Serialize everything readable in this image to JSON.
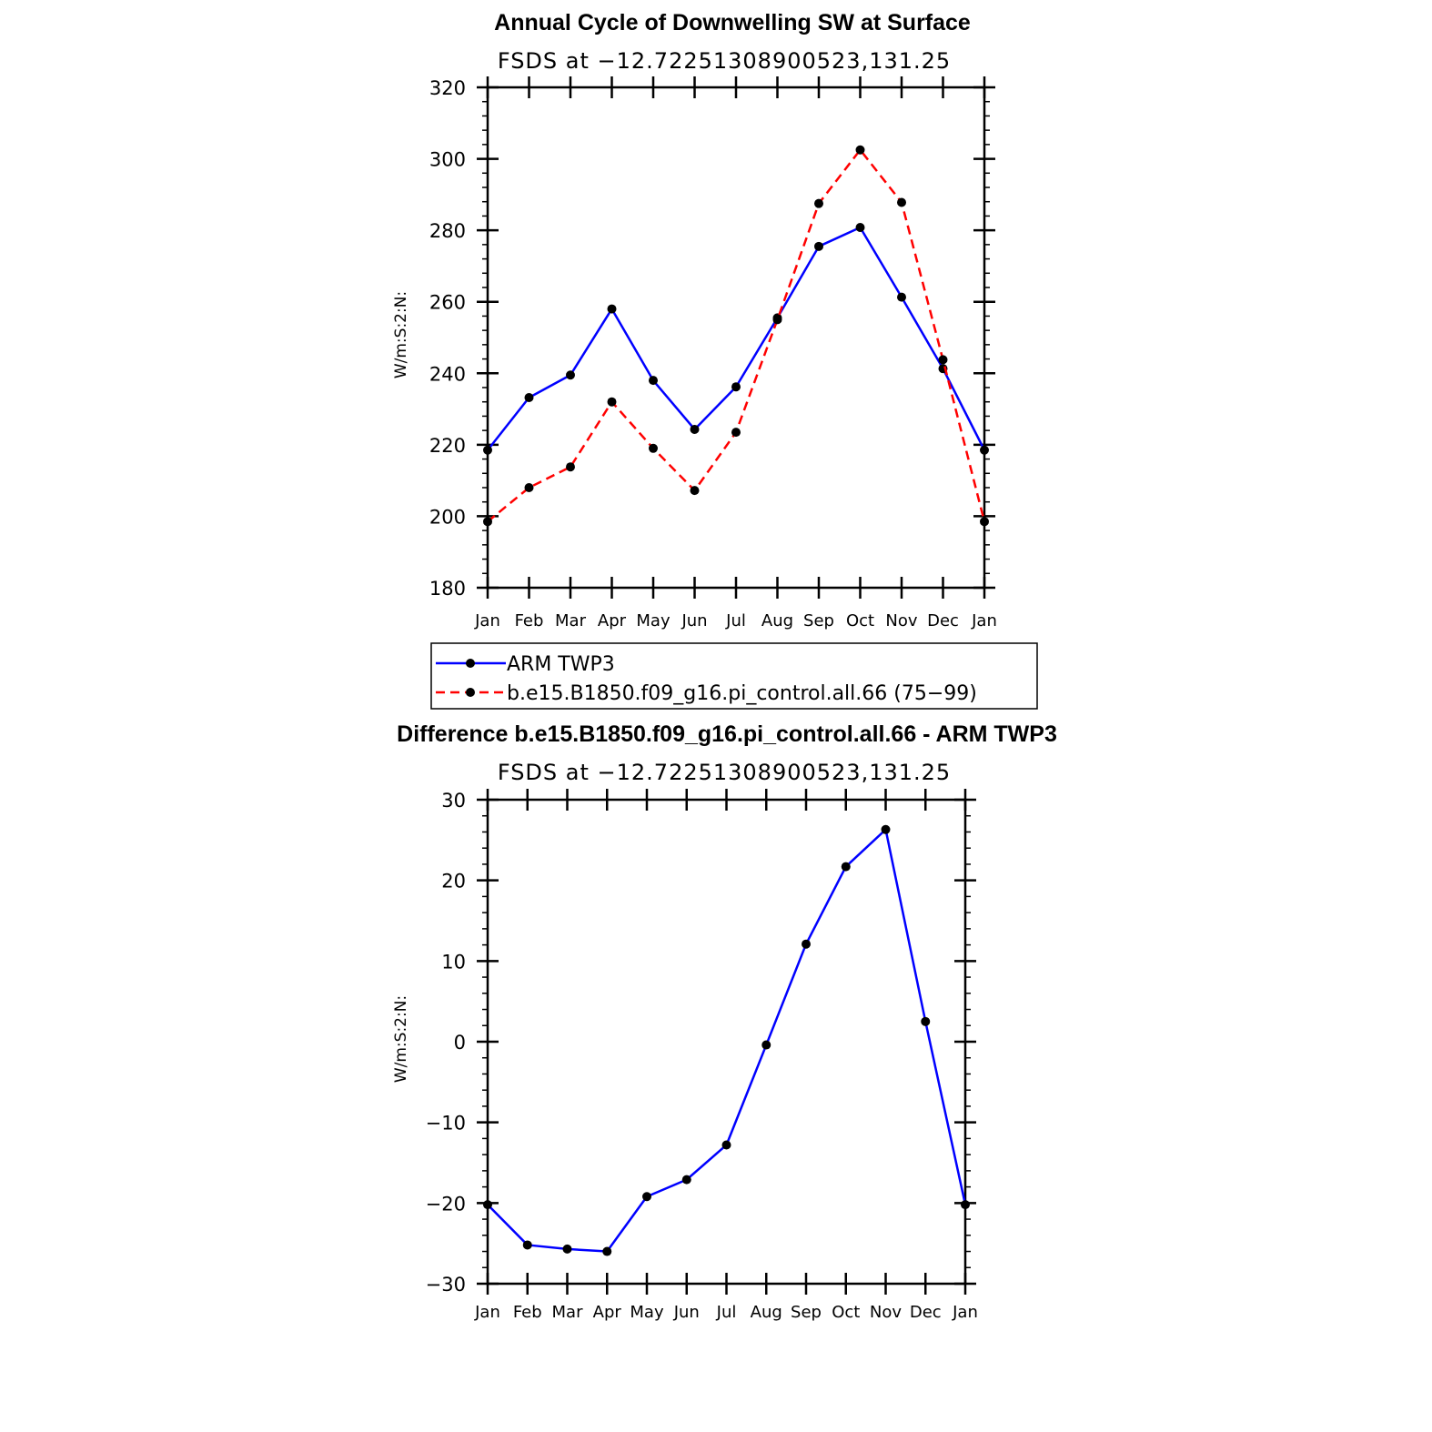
{
  "chart_data": [
    {
      "type": "line",
      "title": "Annual Cycle of Downwelling SW at Surface",
      "subtitle": "FSDS at −12.72251308900523,131.25",
      "xlabel": "",
      "ylabel": "W/m:S:2:N:",
      "categories": [
        "Jan",
        "Feb",
        "Mar",
        "Apr",
        "May",
        "Jun",
        "Jul",
        "Aug",
        "Sep",
        "Oct",
        "Nov",
        "Dec",
        "Jan"
      ],
      "ylim": [
        180,
        320
      ],
      "yticks": [
        180,
        200,
        220,
        240,
        260,
        280,
        300,
        320
      ],
      "ytick_labels": [
        "180",
        "200",
        "220",
        "240",
        "260",
        "280",
        "300",
        "320"
      ],
      "series": [
        {
          "name": "ARM TWP3",
          "color": "#0000ff",
          "dash": "solid",
          "values": [
            218.5,
            233.2,
            239.5,
            258.0,
            238.0,
            224.3,
            236.2,
            255.5,
            275.5,
            280.8,
            261.3,
            241.3,
            218.5
          ]
        },
        {
          "name": "b.e15.B1850.f09_g16.pi_control.all.66 (75−99)",
          "color": "#ff0000",
          "dash": "dashed",
          "values": [
            198.5,
            208.0,
            213.8,
            232.0,
            219.0,
            207.2,
            223.5,
            255.0,
            287.5,
            302.5,
            287.8,
            243.8,
            198.5
          ]
        }
      ],
      "legend": "below",
      "grid": false
    },
    {
      "type": "line",
      "title": "Difference b.e15.B1850.f09_g16.pi_control.all.66 - ARM TWP3",
      "subtitle": "FSDS at −12.72251308900523,131.25",
      "xlabel": "",
      "ylabel": "W/m:S:2:N:",
      "categories": [
        "Jan",
        "Feb",
        "Mar",
        "Apr",
        "May",
        "Jun",
        "Jul",
        "Aug",
        "Sep",
        "Oct",
        "Nov",
        "Dec",
        "Jan"
      ],
      "ylim": [
        -30,
        30
      ],
      "yticks": [
        -30,
        -20,
        -10,
        0,
        10,
        20,
        30
      ],
      "ytick_labels": [
        "−30",
        "−20",
        "−10",
        "0",
        "10",
        "20",
        "30"
      ],
      "series": [
        {
          "name": "Difference",
          "color": "#0000ff",
          "dash": "solid",
          "values": [
            -20.2,
            -25.2,
            -25.7,
            -26.0,
            -19.2,
            -17.1,
            -12.8,
            -0.4,
            12.1,
            21.7,
            26.3,
            2.5,
            -20.2
          ]
        }
      ],
      "grid": false
    }
  ]
}
